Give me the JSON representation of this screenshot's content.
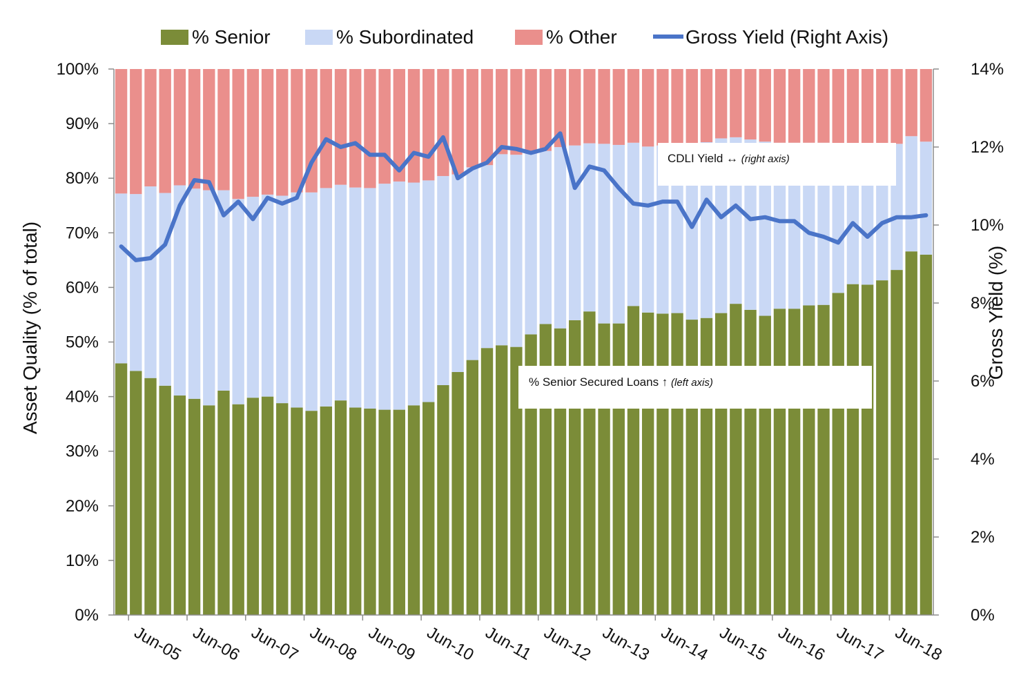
{
  "chart_data": {
    "type": "bar",
    "stacked": true,
    "legend_placement": "top",
    "colors": {
      "senior": "#7b8c38",
      "subordinated": "#c9d8f5",
      "other": "#ea8f8c",
      "yield": "#4a74c8"
    },
    "categories": [
      "Mar-05",
      "Jun-05",
      "Sep-05",
      "Dec-05",
      "Mar-06",
      "Jun-06",
      "Sep-06",
      "Dec-06",
      "Mar-07",
      "Jun-07",
      "Sep-07",
      "Dec-07",
      "Mar-08",
      "Jun-08",
      "Sep-08",
      "Dec-08",
      "Mar-09",
      "Jun-09",
      "Sep-09",
      "Dec-09",
      "Mar-10",
      "Jun-10",
      "Sep-10",
      "Dec-10",
      "Mar-11",
      "Jun-11",
      "Sep-11",
      "Dec-11",
      "Mar-12",
      "Jun-12",
      "Sep-12",
      "Dec-12",
      "Mar-13",
      "Jun-13",
      "Sep-13",
      "Dec-13",
      "Mar-14",
      "Jun-14",
      "Sep-14",
      "Dec-14",
      "Mar-15",
      "Jun-15",
      "Sep-15",
      "Dec-15",
      "Mar-16",
      "Jun-16",
      "Sep-16",
      "Dec-16",
      "Mar-17",
      "Jun-17",
      "Sep-17",
      "Dec-17",
      "Mar-18",
      "Jun-18",
      "Sep-18",
      "Dec-18"
    ],
    "x_tick_labels": [
      "Jun-05",
      "Jun-06",
      "Jun-07",
      "Jun-08",
      "Jun-09",
      "Jun-10",
      "Jun-11",
      "Jun-12",
      "Jun-13",
      "Jun-14",
      "Jun-15",
      "Jun-16",
      "Jun-17",
      "Jun-18"
    ],
    "series": [
      {
        "name": "% Senior",
        "axis": "left",
        "values": [
          46.1,
          44.7,
          43.4,
          42.0,
          40.2,
          39.6,
          38.4,
          41.1,
          38.6,
          39.8,
          40.0,
          38.8,
          38.0,
          37.4,
          38.2,
          39.3,
          38.0,
          37.8,
          37.6,
          37.6,
          38.4,
          39.0,
          42.1,
          44.5,
          46.7,
          48.9,
          49.4,
          49.1,
          51.4,
          53.3,
          52.5,
          54.0,
          55.6,
          53.4,
          53.4,
          56.6,
          55.4,
          55.2,
          55.3,
          54.1,
          54.4,
          55.3,
          57.0,
          55.9,
          54.8,
          56.1,
          56.1,
          56.7,
          56.8,
          59.0,
          60.6,
          60.5,
          61.3,
          63.2,
          66.6,
          66.0
        ]
      },
      {
        "name": "% Subordinated",
        "axis": "left",
        "values": [
          31.1,
          32.4,
          35.1,
          35.3,
          38.5,
          38.5,
          39.4,
          36.7,
          37.6,
          36.8,
          37.0,
          38.0,
          39.4,
          40.0,
          40.0,
          39.5,
          40.3,
          40.4,
          41.4,
          41.8,
          40.8,
          40.6,
          38.3,
          36.2,
          35.3,
          33.5,
          35.0,
          35.2,
          33.1,
          31.7,
          33.2,
          32.0,
          30.8,
          32.9,
          32.7,
          29.9,
          30.4,
          30.8,
          30.9,
          32.1,
          32.2,
          32.0,
          30.5,
          31.2,
          31.9,
          30.4,
          30.4,
          29.8,
          29.7,
          27.4,
          25.8,
          25.9,
          25.0,
          23.1,
          21.1,
          20.7
        ]
      },
      {
        "name": "% Other",
        "axis": "left",
        "values": [
          22.8,
          22.9,
          21.5,
          22.7,
          21.3,
          21.9,
          22.2,
          22.2,
          23.8,
          23.4,
          23.0,
          23.2,
          22.6,
          22.6,
          21.8,
          21.2,
          21.7,
          21.8,
          21.0,
          20.6,
          20.8,
          20.4,
          19.6,
          19.3,
          18.0,
          17.6,
          15.6,
          15.7,
          15.5,
          15.0,
          14.3,
          14.0,
          13.6,
          13.7,
          13.9,
          13.5,
          14.2,
          14.0,
          13.8,
          13.8,
          13.4,
          12.7,
          12.5,
          12.9,
          13.3,
          13.5,
          13.5,
          13.5,
          13.5,
          13.6,
          13.6,
          13.6,
          13.7,
          13.7,
          12.3,
          13.3
        ]
      },
      {
        "name": "Gross Yield (Right Axis)",
        "axis": "right",
        "type": "line",
        "values": [
          9.45,
          9.1,
          9.15,
          9.5,
          10.5,
          11.15,
          11.1,
          10.25,
          10.6,
          10.15,
          10.7,
          10.55,
          10.7,
          11.6,
          12.2,
          12.0,
          12.1,
          11.8,
          11.8,
          11.4,
          11.85,
          11.75,
          12.25,
          11.2,
          11.45,
          11.6,
          12.0,
          11.95,
          11.85,
          11.95,
          12.35,
          10.95,
          11.5,
          11.4,
          10.95,
          10.55,
          10.5,
          10.6,
          10.6,
          9.95,
          10.65,
          10.2,
          10.5,
          10.15,
          10.2,
          10.1,
          10.1,
          9.8,
          9.7,
          9.55,
          10.05,
          9.7,
          10.05,
          10.2,
          10.2,
          10.25
        ]
      }
    ],
    "ylabel": "Asset Quality (% of total)",
    "ylim": [
      0,
      100
    ],
    "y_ticks": [
      "0%",
      "10%",
      "20%",
      "30%",
      "40%",
      "50%",
      "60%",
      "70%",
      "80%",
      "90%",
      "100%"
    ],
    "y2label": "Gross Yield (%)",
    "y2lim": [
      0,
      14
    ],
    "y2_ticks": [
      "0%",
      "2%",
      "4%",
      "6%",
      "8%",
      "10%",
      "12%",
      "14%"
    ],
    "grid": false,
    "annotations": [
      {
        "name": "cdli-yield",
        "text": "CDLI Yield ↔ ",
        "sub": "(right axis)"
      },
      {
        "name": "senior-secured",
        "text": "% Senior Secured Loans ↑ ",
        "sub": "(left axis)"
      }
    ]
  }
}
